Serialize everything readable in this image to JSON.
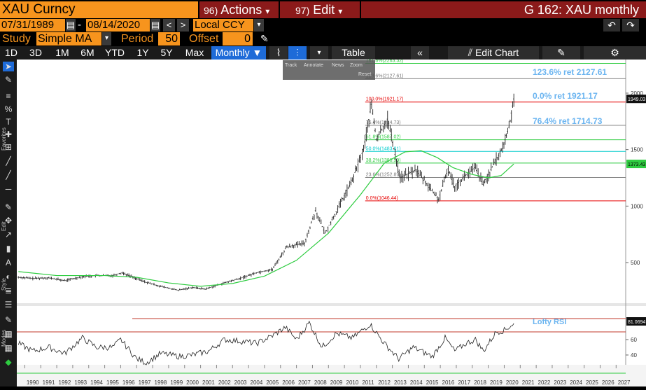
{
  "header": {
    "ticker": "XAU Curncy",
    "actions": {
      "num": "96)",
      "label": "Actions",
      "caret": "▾"
    },
    "edit": {
      "num": "97)",
      "label": "Edit",
      "caret": "▾"
    },
    "title": "G 162: XAU monthly"
  },
  "dates": {
    "start": "07/31/1989",
    "dash": "-",
    "end": "08/14/2020",
    "prev": "<",
    "next": ">",
    "currency": "Local CCY"
  },
  "study": {
    "label": "Study",
    "value": "Simple MA",
    "period_label": "Period",
    "period": "50",
    "offset_label": "Offset",
    "offset": "0"
  },
  "toolbar": {
    "ranges": [
      "1D",
      "3D",
      "1M",
      "6M",
      "YTD",
      "1Y",
      "5Y",
      "Max"
    ],
    "frequency": "Monthly ▼",
    "table": "Table",
    "edit_chart": "Edit Chart"
  },
  "zoom": {
    "track": "Track",
    "annotate": "Annotate",
    "news": "News",
    "zoom": "Zoom",
    "reset": "Reset"
  },
  "side_labels": {
    "favorites": "Favorites",
    "edit": "Edit",
    "style": "Style",
    "modes": "Modes"
  },
  "chart_data": {
    "type": "candlestick",
    "title": "XAU monthly",
    "x_axis_years": [
      "1990",
      "1991",
      "1992",
      "1993",
      "1994",
      "1995",
      "1996",
      "1997",
      "1998",
      "1999",
      "2000",
      "2001",
      "2002",
      "2003",
      "2004",
      "2005",
      "2006",
      "2007",
      "2008",
      "2009",
      "2010",
      "2011",
      "2012",
      "2013",
      "2014",
      "2015",
      "2016",
      "2017",
      "2018",
      "2019",
      "2020",
      "2021",
      "2022",
      "2023",
      "2024",
      "2025",
      "2026",
      "2027"
    ],
    "y_ticks": [
      500,
      1000,
      1500,
      2000
    ],
    "price_series": {
      "name": "XAU",
      "last": "1949.03",
      "points": [
        [
          1989.6,
          370
        ],
        [
          1990.5,
          360
        ],
        [
          1991.5,
          365
        ],
        [
          1992.5,
          340
        ],
        [
          1993.6,
          375
        ],
        [
          1994.5,
          385
        ],
        [
          1995.5,
          385
        ],
        [
          1996.1,
          410
        ],
        [
          1997.5,
          330
        ],
        [
          1998.5,
          290
        ],
        [
          1999.6,
          255
        ],
        [
          2000.5,
          280
        ],
        [
          2001.3,
          265
        ],
        [
          2002.5,
          320
        ],
        [
          2003.5,
          360
        ],
        [
          2004.5,
          410
        ],
        [
          2005.5,
          440
        ],
        [
          2006.4,
          640
        ],
        [
          2007.5,
          670
        ],
        [
          2008.2,
          960
        ],
        [
          2008.8,
          760
        ],
        [
          2009.5,
          950
        ],
        [
          2010.5,
          1230
        ],
        [
          2011.2,
          1500
        ],
        [
          2011.7,
          1900
        ],
        [
          2012.0,
          1590
        ],
        [
          2012.7,
          1770
        ],
        [
          2013.5,
          1250
        ],
        [
          2014.5,
          1320
        ],
        [
          2015.9,
          1060
        ],
        [
          2016.5,
          1330
        ],
        [
          2016.9,
          1170
        ],
        [
          2017.5,
          1260
        ],
        [
          2018.2,
          1340
        ],
        [
          2018.7,
          1190
        ],
        [
          2019.5,
          1410
        ],
        [
          2019.9,
          1510
        ],
        [
          2020.3,
          1700
        ],
        [
          2020.6,
          1949
        ]
      ]
    },
    "ma_series": {
      "name": "Simple MA 50",
      "last": "1373.43",
      "points": [
        [
          1989.6,
          420
        ],
        [
          1992.0,
          385
        ],
        [
          1995.0,
          385
        ],
        [
          1997.0,
          370
        ],
        [
          1999.0,
          320
        ],
        [
          2001.0,
          290
        ],
        [
          2003.0,
          315
        ],
        [
          2005.0,
          380
        ],
        [
          2007.0,
          520
        ],
        [
          2009.0,
          760
        ],
        [
          2011.0,
          1100
        ],
        [
          2012.5,
          1380
        ],
        [
          2013.8,
          1480
        ],
        [
          2014.8,
          1490
        ],
        [
          2015.8,
          1430
        ],
        [
          2016.8,
          1340
        ],
        [
          2018.0,
          1280
        ],
        [
          2019.0,
          1250
        ],
        [
          2019.8,
          1270
        ],
        [
          2020.6,
          1373
        ]
      ]
    },
    "fibonacci": [
      {
        "label": "161.8%(2263.32)",
        "value": 2263.32,
        "color": "#2ecc40"
      },
      {
        "label": "123.6%(2127.61)",
        "value": 2127.61,
        "color": "#888888"
      },
      {
        "label": "100.0%(1921.17)",
        "value": 1921.17,
        "color": "#e60000"
      },
      {
        "label": "76.4%(1714.73)",
        "value": 1714.73,
        "color": "#888888"
      },
      {
        "label": "61.8%(1587.02)",
        "value": 1587.02,
        "color": "#2ecc40"
      },
      {
        "label": "50.0%(1483.81)",
        "value": 1483.81,
        "color": "#00cccc"
      },
      {
        "label": "38.2%(1380.59)",
        "value": 1380.59,
        "color": "#2ecc40"
      },
      {
        "label": "23.6%(1252.89)",
        "value": 1252.89,
        "color": "#888888"
      },
      {
        "label": "0.0%(1046.44)",
        "value": 1046.44,
        "color": "#e60000"
      }
    ],
    "annotations": [
      "123.6% ret 2127.61",
      "0.0% ret 1921.17",
      "76.4% ret 1714.73"
    ],
    "rsi": {
      "name": "Lofty RSI",
      "last": "81.0694",
      "ticks": [
        40,
        60
      ],
      "upper": 70,
      "lower": 30,
      "overbought_line": 80,
      "points": [
        [
          1989.6,
          55
        ],
        [
          1990.5,
          45
        ],
        [
          1991.5,
          50
        ],
        [
          1992.5,
          42
        ],
        [
          1993.6,
          62
        ],
        [
          1994.5,
          50
        ],
        [
          1995.5,
          50
        ],
        [
          1996.0,
          60
        ],
        [
          1997.0,
          35
        ],
        [
          1997.6,
          30
        ],
        [
          1998.5,
          42
        ],
        [
          1999.7,
          38
        ],
        [
          2000.5,
          40
        ],
        [
          2001.5,
          45
        ],
        [
          2002.5,
          60
        ],
        [
          2003.5,
          58
        ],
        [
          2004.5,
          55
        ],
        [
          2005.5,
          65
        ],
        [
          2006.3,
          76
        ],
        [
          2007.0,
          60
        ],
        [
          2007.8,
          82
        ],
        [
          2008.6,
          50
        ],
        [
          2009.5,
          68
        ],
        [
          2010.5,
          62
        ],
        [
          2011.6,
          80
        ],
        [
          2012.5,
          55
        ],
        [
          2013.4,
          35
        ],
        [
          2014.3,
          50
        ],
        [
          2015.5,
          38
        ],
        [
          2016.3,
          62
        ],
        [
          2016.9,
          45
        ],
        [
          2017.6,
          55
        ],
        [
          2018.2,
          60
        ],
        [
          2018.7,
          45
        ],
        [
          2019.5,
          70
        ],
        [
          2020.0,
          72
        ],
        [
          2020.6,
          81
        ]
      ]
    }
  }
}
